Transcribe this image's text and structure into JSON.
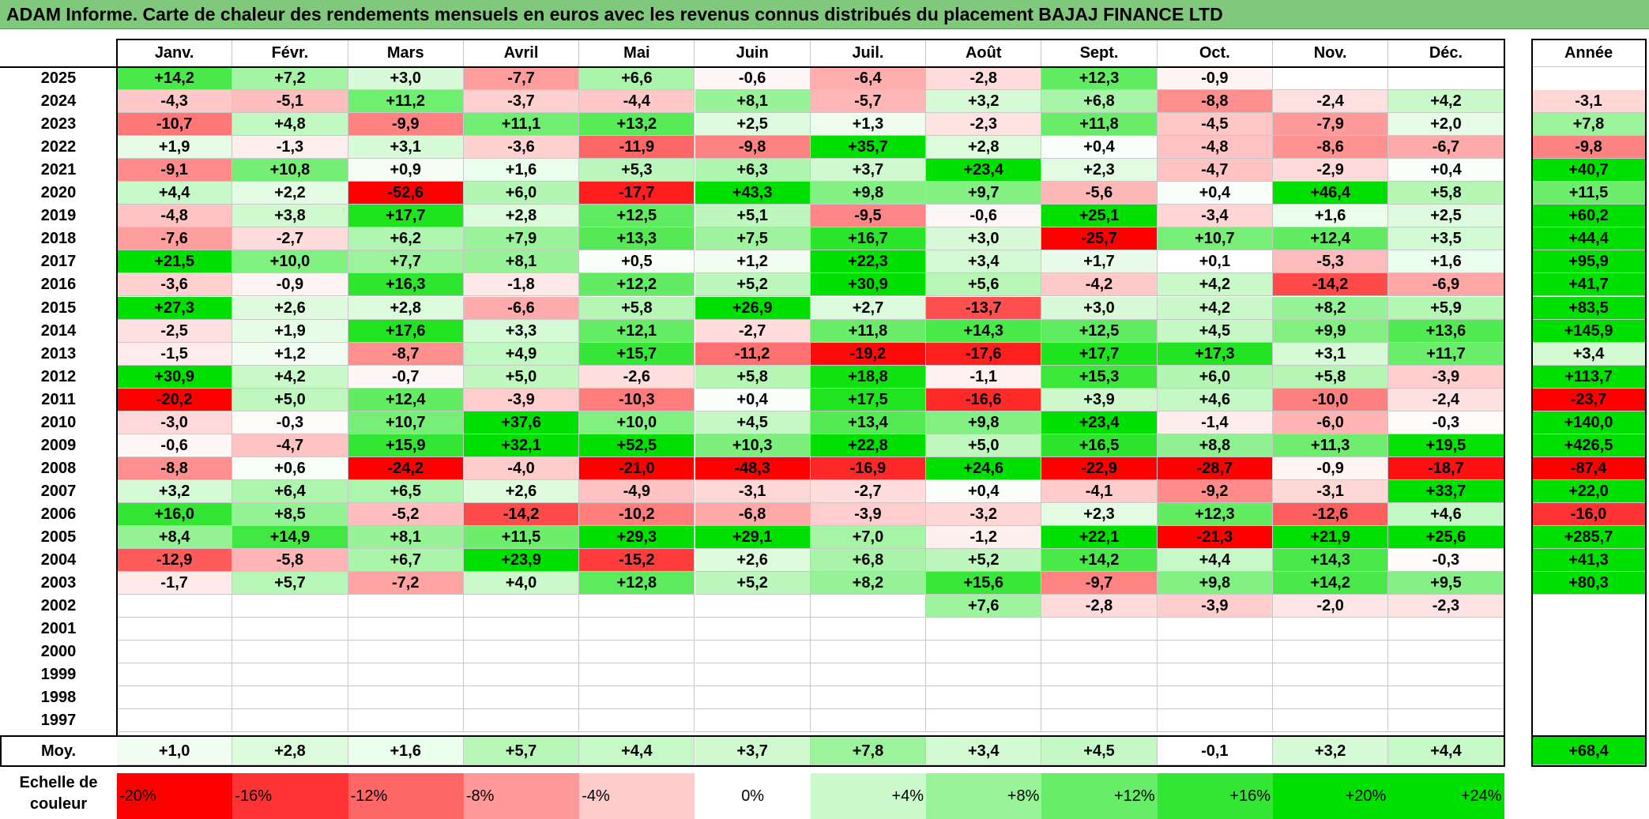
{
  "title": "ADAM Informe. Carte de chaleur des rendements mensuels en euros avec les revenus connus distribués du placement BAJAJ FINANCE LTD",
  "chart_data": {
    "type": "heatmap",
    "months": [
      "Janv.",
      "Févr.",
      "Mars",
      "Avril",
      "Mai",
      "Juin",
      "Juil.",
      "Août",
      "Sept.",
      "Oct.",
      "Nov.",
      "Déc."
    ],
    "year_header": "Année",
    "years": [
      "2025",
      "2024",
      "2023",
      "2022",
      "2021",
      "2020",
      "2019",
      "2018",
      "2017",
      "2016",
      "2015",
      "2014",
      "2013",
      "2012",
      "2011",
      "2010",
      "2009",
      "2008",
      "2007",
      "2006",
      "2005",
      "2004",
      "2003",
      "2002",
      "2001",
      "2000",
      "1999",
      "1998",
      "1997"
    ],
    "values": [
      [
        "+14,2",
        "+7,2",
        "+3,0",
        "-7,7",
        "+6,6",
        "-0,6",
        "-6,4",
        "-2,8",
        "+12,3",
        "-0,9",
        "",
        ""
      ],
      [
        "-4,3",
        "-5,1",
        "+11,2",
        "-3,7",
        "-4,4",
        "+8,1",
        "-5,7",
        "+3,2",
        "+6,8",
        "-8,8",
        "-2,4",
        "+4,2"
      ],
      [
        "-10,7",
        "+4,8",
        "-9,9",
        "+11,1",
        "+13,2",
        "+2,5",
        "+1,3",
        "-2,3",
        "+11,8",
        "-4,5",
        "-7,9",
        "+2,0"
      ],
      [
        "+1,9",
        "-1,3",
        "+3,1",
        "-3,6",
        "-11,9",
        "-9,8",
        "+35,7",
        "+2,8",
        "+0,4",
        "-4,8",
        "-8,6",
        "-6,7"
      ],
      [
        "-9,1",
        "+10,8",
        "+0,9",
        "+1,6",
        "+5,3",
        "+6,3",
        "+3,7",
        "+23,4",
        "+2,3",
        "-4,7",
        "-2,9",
        "+0,4"
      ],
      [
        "+4,4",
        "+2,2",
        "-52,6",
        "+6,0",
        "-17,7",
        "+43,3",
        "+9,8",
        "+9,7",
        "-5,6",
        "+0,4",
        "+46,4",
        "+5,8"
      ],
      [
        "-4,8",
        "+3,8",
        "+17,7",
        "+2,8",
        "+12,5",
        "+5,1",
        "-9,5",
        "-0,6",
        "+25,1",
        "-3,4",
        "+1,6",
        "+2,5"
      ],
      [
        "-7,6",
        "-2,7",
        "+6,2",
        "+7,9",
        "+13,3",
        "+7,5",
        "+16,7",
        "+3,0",
        "-25,7",
        "+10,7",
        "+12,4",
        "+3,5"
      ],
      [
        "+21,5",
        "+10,0",
        "+7,7",
        "+8,1",
        "+0,5",
        "+1,2",
        "+22,3",
        "+3,4",
        "+1,7",
        "+0,1",
        "-5,3",
        "+1,6"
      ],
      [
        "-3,6",
        "-0,9",
        "+16,3",
        "-1,8",
        "+12,2",
        "+5,2",
        "+30,9",
        "+5,6",
        "-4,2",
        "+4,2",
        "-14,2",
        "-6,9"
      ],
      [
        "+27,3",
        "+2,6",
        "+2,8",
        "-6,6",
        "+5,8",
        "+26,9",
        "+2,7",
        "-13,7",
        "+3,0",
        "+4,2",
        "+8,2",
        "+5,9"
      ],
      [
        "-2,5",
        "+1,9",
        "+17,6",
        "+3,3",
        "+12,1",
        "-2,7",
        "+11,8",
        "+14,3",
        "+12,5",
        "+4,5",
        "+9,9",
        "+13,6"
      ],
      [
        "-1,5",
        "+1,2",
        "-8,7",
        "+4,9",
        "+15,7",
        "-11,2",
        "-19,2",
        "-17,6",
        "+17,7",
        "+17,3",
        "+3,1",
        "+11,7"
      ],
      [
        "+30,9",
        "+4,2",
        "-0,7",
        "+5,0",
        "-2,6",
        "+5,8",
        "+18,8",
        "-1,1",
        "+15,3",
        "+6,0",
        "+5,8",
        "-3,9"
      ],
      [
        "-20,2",
        "+5,0",
        "+12,4",
        "-3,9",
        "-10,3",
        "+0,4",
        "+17,5",
        "-16,6",
        "+3,9",
        "+4,6",
        "-10,0",
        "-2,4"
      ],
      [
        "-3,0",
        "-0,3",
        "+10,7",
        "+37,6",
        "+10,0",
        "+4,5",
        "+13,4",
        "+9,8",
        "+23,4",
        "-1,4",
        "-6,0",
        "-0,3"
      ],
      [
        "-0,6",
        "-4,7",
        "+15,9",
        "+32,1",
        "+52,5",
        "+10,3",
        "+22,8",
        "+5,0",
        "+16,5",
        "+8,8",
        "+11,3",
        "+19,5"
      ],
      [
        "-8,8",
        "+0,6",
        "-24,2",
        "-4,0",
        "-21,0",
        "-48,3",
        "-16,9",
        "+24,6",
        "-22,9",
        "-28,7",
        "-0,9",
        "-18,7"
      ],
      [
        "+3,2",
        "+6,4",
        "+6,5",
        "+2,6",
        "-4,9",
        "-3,1",
        "-2,7",
        "+0,4",
        "-4,1",
        "-9,2",
        "-3,1",
        "+33,7"
      ],
      [
        "+16,0",
        "+8,5",
        "-5,2",
        "-14,2",
        "-10,2",
        "-6,8",
        "-3,9",
        "-3,2",
        "+2,3",
        "+12,3",
        "-12,6",
        "+4,6"
      ],
      [
        "+8,4",
        "+14,9",
        "+8,1",
        "+11,5",
        "+29,3",
        "+29,1",
        "+7,0",
        "-1,2",
        "+22,1",
        "-21,3",
        "+21,9",
        "+25,6"
      ],
      [
        "-12,9",
        "-5,8",
        "+6,7",
        "+23,9",
        "-15,2",
        "+2,6",
        "+6,8",
        "+5,2",
        "+14,2",
        "+4,4",
        "+14,3",
        "-0,3"
      ],
      [
        "-1,7",
        "+5,7",
        "-7,2",
        "+4,0",
        "+12,8",
        "+5,2",
        "+8,2",
        "+15,6",
        "-9,7",
        "+9,8",
        "+14,2",
        "+9,5"
      ],
      [
        "",
        "",
        "",
        "",
        "",
        "",
        "",
        "+7,6",
        "-2,8",
        "-3,9",
        "-2,0",
        "-2,3"
      ],
      [
        "",
        "",
        "",
        "",
        "",
        "",
        "",
        "",
        "",
        "",
        "",
        ""
      ],
      [
        "",
        "",
        "",
        "",
        "",
        "",
        "",
        "",
        "",
        "",
        "",
        ""
      ],
      [
        "",
        "",
        "",
        "",
        "",
        "",
        "",
        "",
        "",
        "",
        "",
        ""
      ],
      [
        "",
        "",
        "",
        "",
        "",
        "",
        "",
        "",
        "",
        "",
        "",
        ""
      ],
      [
        "",
        "",
        "",
        "",
        "",
        "",
        "",
        "",
        "",
        "",
        "",
        ""
      ]
    ],
    "annual": [
      "",
      "-3,1",
      "+7,8",
      "-9,8",
      "+40,7",
      "+11,5",
      "+60,2",
      "+44,4",
      "+95,9",
      "+41,7",
      "+83,5",
      "+145,9",
      "+3,4",
      "+113,7",
      "-23,7",
      "+140,0",
      "+426,5",
      "-87,4",
      "+22,0",
      "-16,0",
      "+285,7",
      "+41,3",
      "+80,3",
      "",
      "",
      "",
      "",
      "",
      ""
    ],
    "average_label": "Moy.",
    "average": [
      "+1,0",
      "+2,8",
      "+1,6",
      "+5,7",
      "+4,4",
      "+3,7",
      "+7,8",
      "+3,4",
      "+4,5",
      "-0,1",
      "+3,2",
      "+4,4"
    ],
    "average_annual": "+68,4",
    "scale_label": [
      "Echelle de",
      "couleur"
    ],
    "scale": [
      {
        "label": "-20%",
        "value": -20
      },
      {
        "label": "-16%",
        "value": -16
      },
      {
        "label": "-12%",
        "value": -12
      },
      {
        "label": "-8%",
        "value": -8
      },
      {
        "label": "-4%",
        "value": -4
      },
      {
        "label": "0%",
        "value": 0
      },
      {
        "label": "+4%",
        "value": 4
      },
      {
        "label": "+8%",
        "value": 8
      },
      {
        "label": "+12%",
        "value": 12
      },
      {
        "label": "+16%",
        "value": 16
      },
      {
        "label": "+20%",
        "value": 20
      },
      {
        "label": "+24%",
        "value": 24
      }
    ],
    "colors": {
      "negative": "#ff0000",
      "positive": "#00e000",
      "neutral": "#ffffff"
    }
  }
}
